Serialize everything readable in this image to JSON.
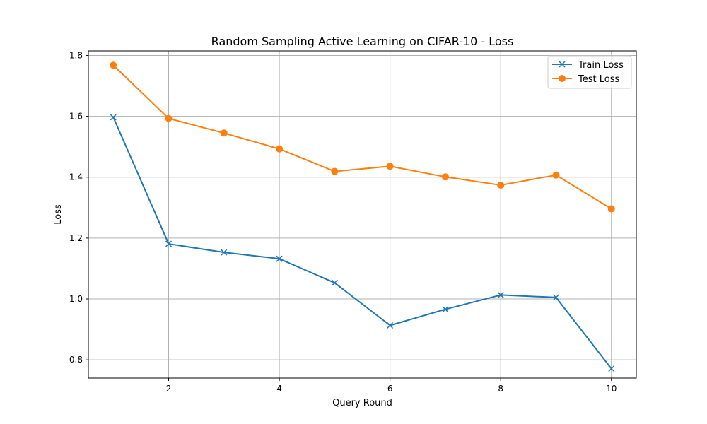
{
  "chart_data": {
    "type": "line",
    "title": "Random Sampling Active Learning on CIFAR-10 - Loss",
    "xlabel": "Query Round",
    "ylabel": "Loss",
    "x": [
      1,
      2,
      3,
      4,
      5,
      6,
      7,
      8,
      9,
      10
    ],
    "xlim": [
      0.55,
      10.45
    ],
    "ylim": [
      0.74,
      1.815
    ],
    "xticks": [
      2,
      4,
      6,
      8,
      10
    ],
    "xtick_labels": [
      "2",
      "4",
      "6",
      "8",
      "10"
    ],
    "yticks": [
      0.8,
      1.0,
      1.2,
      1.4,
      1.6,
      1.8
    ],
    "ytick_labels": [
      "0.8",
      "1.0",
      "1.2",
      "1.4",
      "1.6",
      "1.8"
    ],
    "grid": true,
    "legend_position": "top-right",
    "series": [
      {
        "name": "Train Loss",
        "color": "#1f77b4",
        "marker": "x",
        "values": [
          1.597,
          1.181,
          1.153,
          1.132,
          1.053,
          0.913,
          0.966,
          1.013,
          1.005,
          0.771
        ]
      },
      {
        "name": "Test Loss",
        "color": "#ff7f0e",
        "marker": "circle",
        "values": [
          1.768,
          1.593,
          1.545,
          1.493,
          1.419,
          1.436,
          1.401,
          1.374,
          1.407,
          1.296
        ]
      }
    ]
  }
}
